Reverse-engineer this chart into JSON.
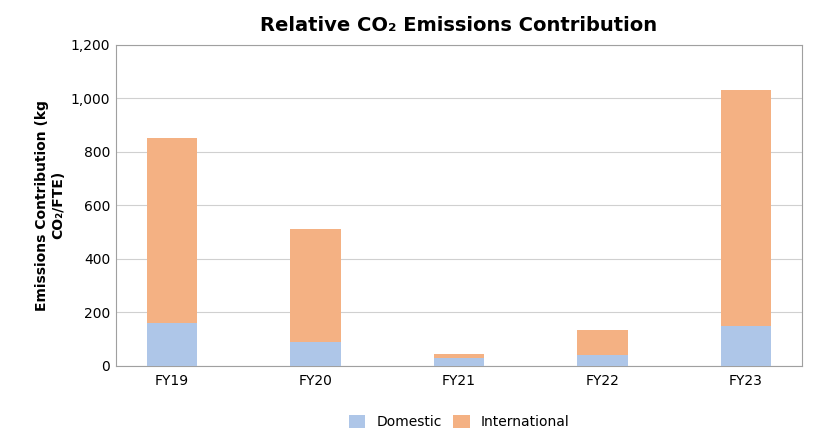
{
  "categories": [
    "FY19",
    "FY20",
    "FY21",
    "FY22",
    "FY23"
  ],
  "domestic": [
    160,
    90,
    30,
    40,
    150
  ],
  "international": [
    690,
    420,
    15,
    95,
    880
  ],
  "domestic_color": "#aec6e8",
  "international_color": "#f4b183",
  "domestic_label": "Domestic",
  "international_label": "International",
  "title": "Relative CO₂ Emissions Contribution",
  "ylabel_line1": "Emissions Contribution (kg",
  "ylabel_line2": "CO₂/FTE)",
  "ylim": [
    0,
    1200
  ],
  "yticks": [
    0,
    200,
    400,
    600,
    800,
    1000,
    1200
  ],
  "title_fontsize": 14,
  "axis_fontsize": 10,
  "tick_fontsize": 10,
  "legend_fontsize": 10,
  "bar_width": 0.35,
  "background_color": "#ffffff",
  "plot_background_color": "#ffffff",
  "grid_color": "#d0d0d0",
  "border_color": "#a0a0a0"
}
